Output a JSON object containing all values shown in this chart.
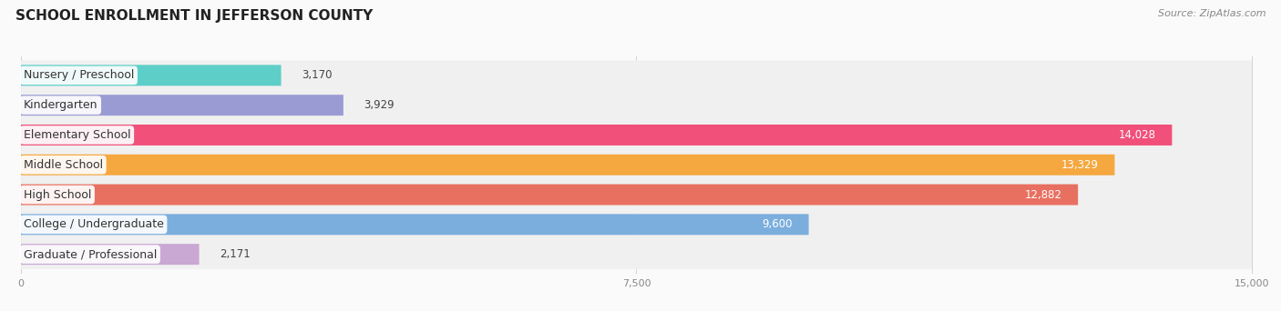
{
  "title": "SCHOOL ENROLLMENT IN JEFFERSON COUNTY",
  "source": "Source: ZipAtlas.com",
  "categories": [
    "Nursery / Preschool",
    "Kindergarten",
    "Elementary School",
    "Middle School",
    "High School",
    "College / Undergraduate",
    "Graduate / Professional"
  ],
  "values": [
    3170,
    3929,
    14028,
    13329,
    12882,
    9600,
    2171
  ],
  "bar_colors": [
    "#5ECEC8",
    "#9B9BD4",
    "#F0507A",
    "#F5A840",
    "#E87060",
    "#7BAEDD",
    "#C9A8D4"
  ],
  "bar_bg_color": "#E8E8E8",
  "row_bg_color": "#F0F0F0",
  "xlim_max": 15000,
  "xticks": [
    0,
    7500,
    15000
  ],
  "xtick_labels": [
    "0",
    "7,500",
    "15,000"
  ],
  "title_fontsize": 11,
  "source_fontsize": 8,
  "label_fontsize": 9,
  "value_fontsize": 8.5,
  "background_color": "#FAFAFA",
  "value_threshold": 5000
}
